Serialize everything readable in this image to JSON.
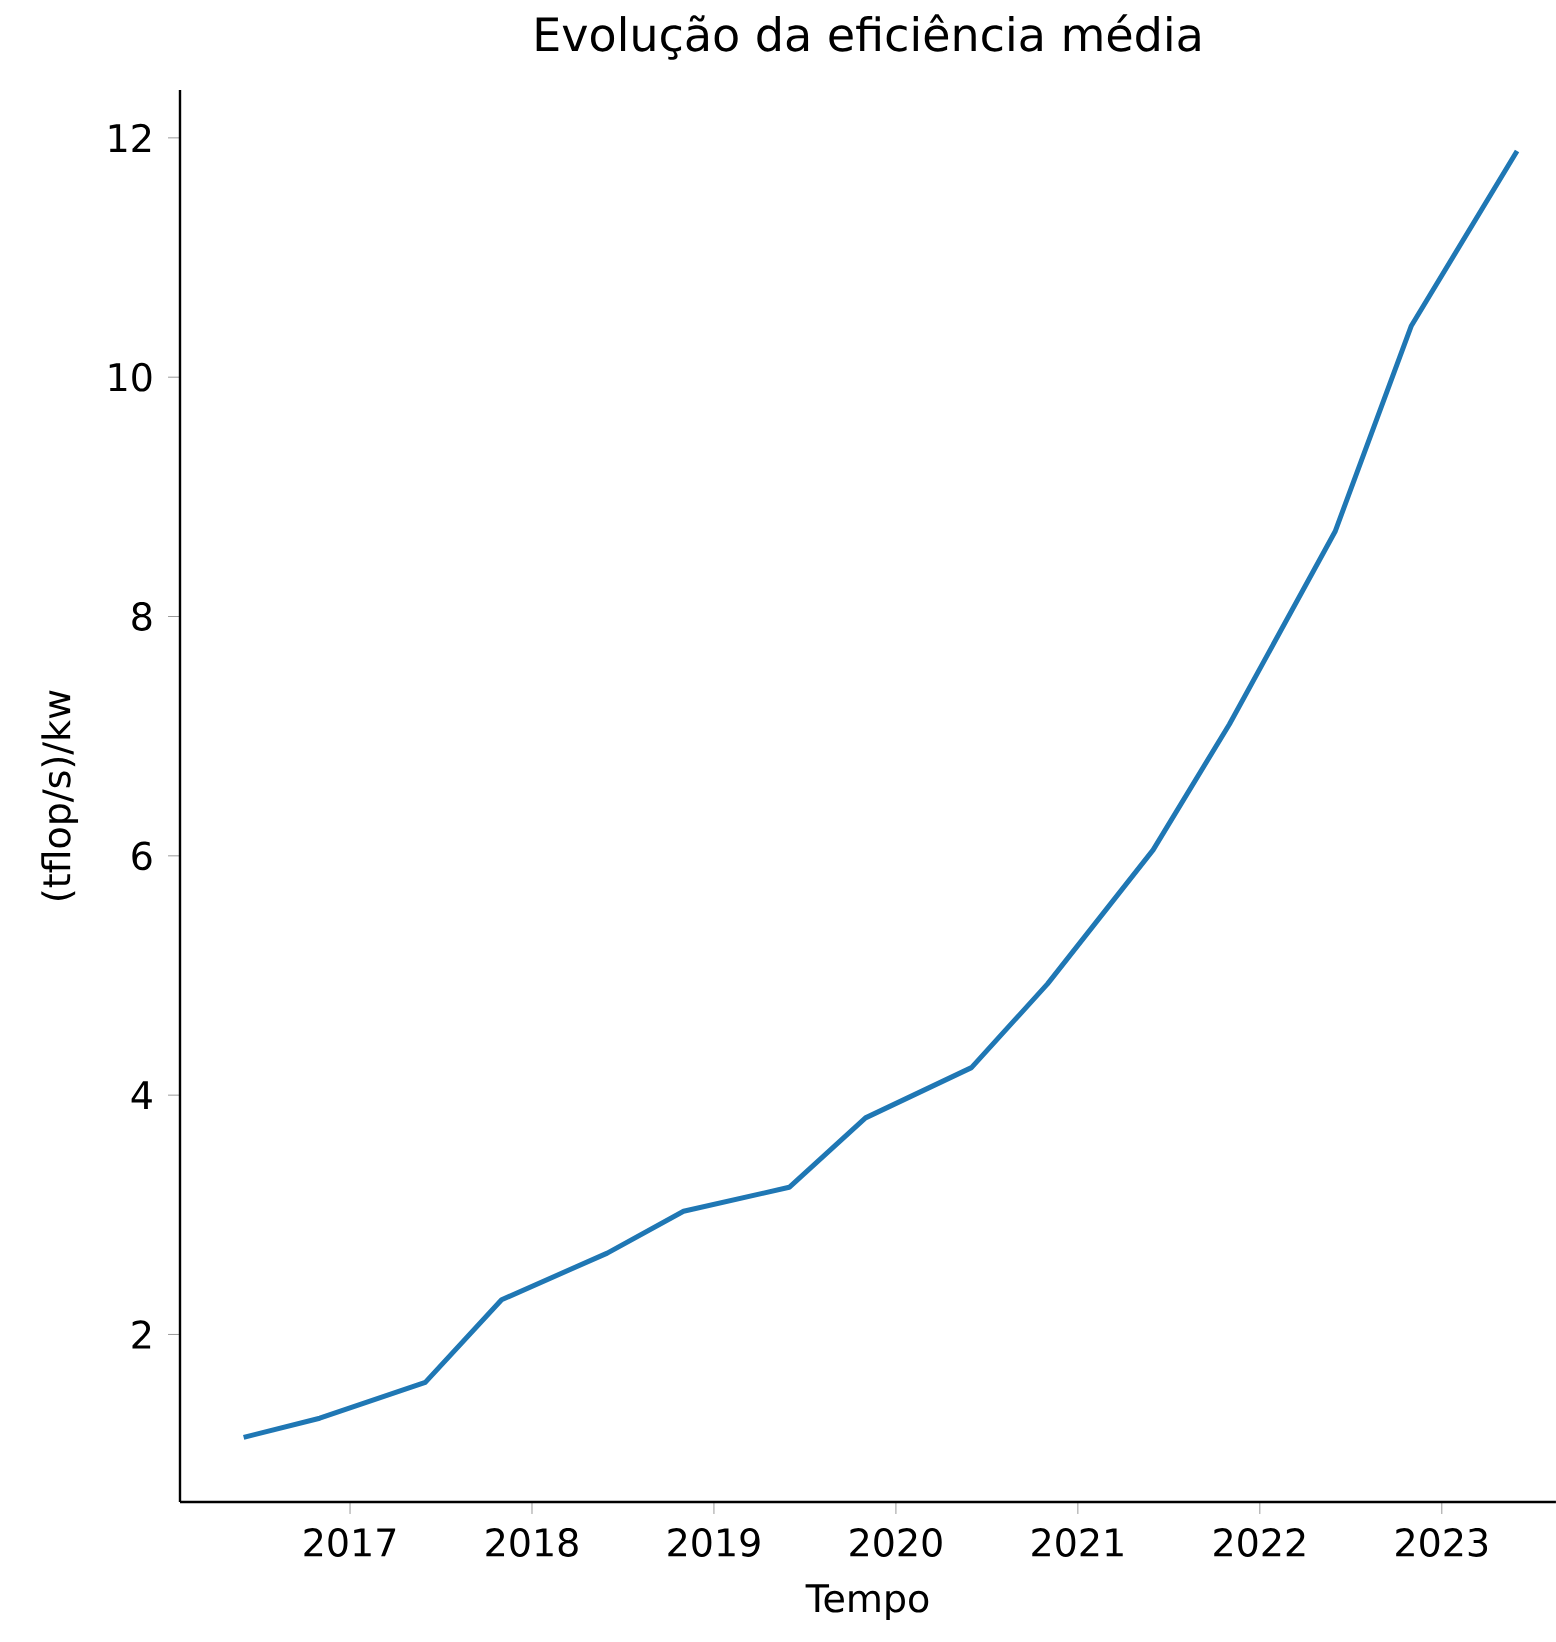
{
  "chart_data": {
    "type": "line",
    "title": "Evolução da eficiência média",
    "xlabel": "Tempo",
    "ylabel": "(tflop/s)/kw",
    "x": [
      "2016-06",
      "2016-11",
      "2017-06",
      "2017-11",
      "2018-06",
      "2018-11",
      "2019-06",
      "2019-11",
      "2020-06",
      "2020-11",
      "2021-06",
      "2021-11",
      "2022-06",
      "2022-11",
      "2023-06"
    ],
    "series": [
      {
        "color": "#1f77b4",
        "values": [
          1.14,
          1.3,
          1.6,
          2.29,
          2.68,
          3.03,
          3.23,
          3.81,
          4.23,
          4.93,
          6.05,
          7.1,
          8.71,
          10.43,
          11.89
        ]
      }
    ],
    "xlim": [
      "2016-01-25",
      "2023-08-18"
    ],
    "ylim": [
      0.6,
      12.4
    ],
    "xticks": [
      "2017",
      "2018",
      "2019",
      "2020",
      "2021",
      "2022",
      "2023"
    ],
    "yticks": [
      2,
      4,
      6,
      8,
      10,
      12
    ]
  }
}
